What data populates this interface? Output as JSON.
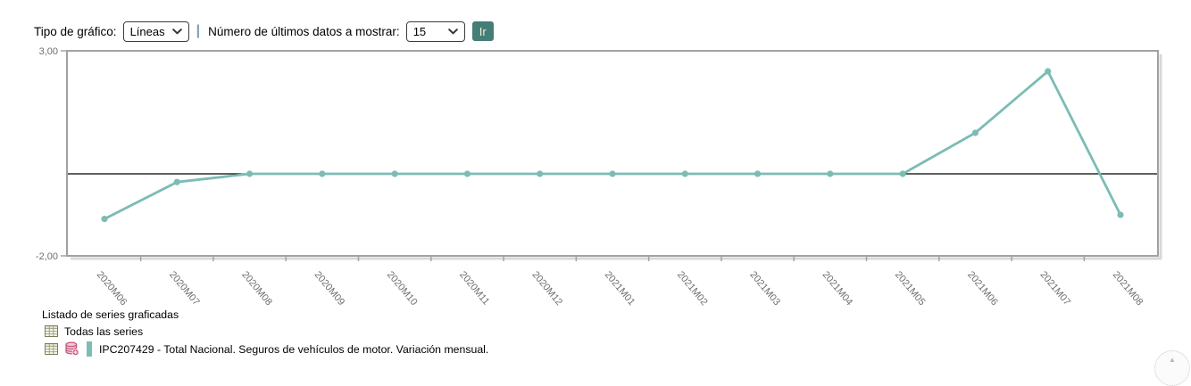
{
  "controls": {
    "chart_type_label": "Tipo de gráfico:",
    "chart_type_value": "Líneas",
    "separator": "|",
    "num_data_label": "Número de últimos datos a mostrar:",
    "num_data_value": "15",
    "go_button": "Ir"
  },
  "chart_data": {
    "type": "line",
    "categories": [
      "2020M06",
      "2020M07",
      "2020M08",
      "2020M09",
      "2020M10",
      "2020M11",
      "2020M12",
      "2021M01",
      "2021M02",
      "2021M03",
      "2021M04",
      "2021M05",
      "2021M06",
      "2021M07",
      "2021M08"
    ],
    "series": [
      {
        "name": "IPC207429 - Total Nacional. Seguros de vehículos de motor. Variación mensual.",
        "values": [
          -1.1,
          -0.2,
          0,
          0,
          0,
          0,
          0,
          0,
          0,
          0,
          0,
          0,
          1.0,
          2.5,
          -1.0
        ],
        "color": "#7cbcb4"
      }
    ],
    "title": "",
    "xlabel": "",
    "ylabel": "",
    "ylim": [
      -2,
      3
    ],
    "yticks": [
      {
        "label": "3,00",
        "value": 3
      },
      {
        "label": "-2,00",
        "value": -2
      }
    ],
    "baseline": 0,
    "grid": false,
    "legend_position": "bottom-left"
  },
  "legend": {
    "title": "Listado de series graficadas",
    "all_series_label": "Todas las series"
  },
  "colors": {
    "series_line": "#7cbcb4",
    "go_button_bg": "#457e76",
    "separator": "#7f9db9",
    "axis_border": "#a2a2a2",
    "axis_text": "#6e6e6e",
    "baseline": "#000000"
  },
  "scroll_hint_icon": "▲"
}
